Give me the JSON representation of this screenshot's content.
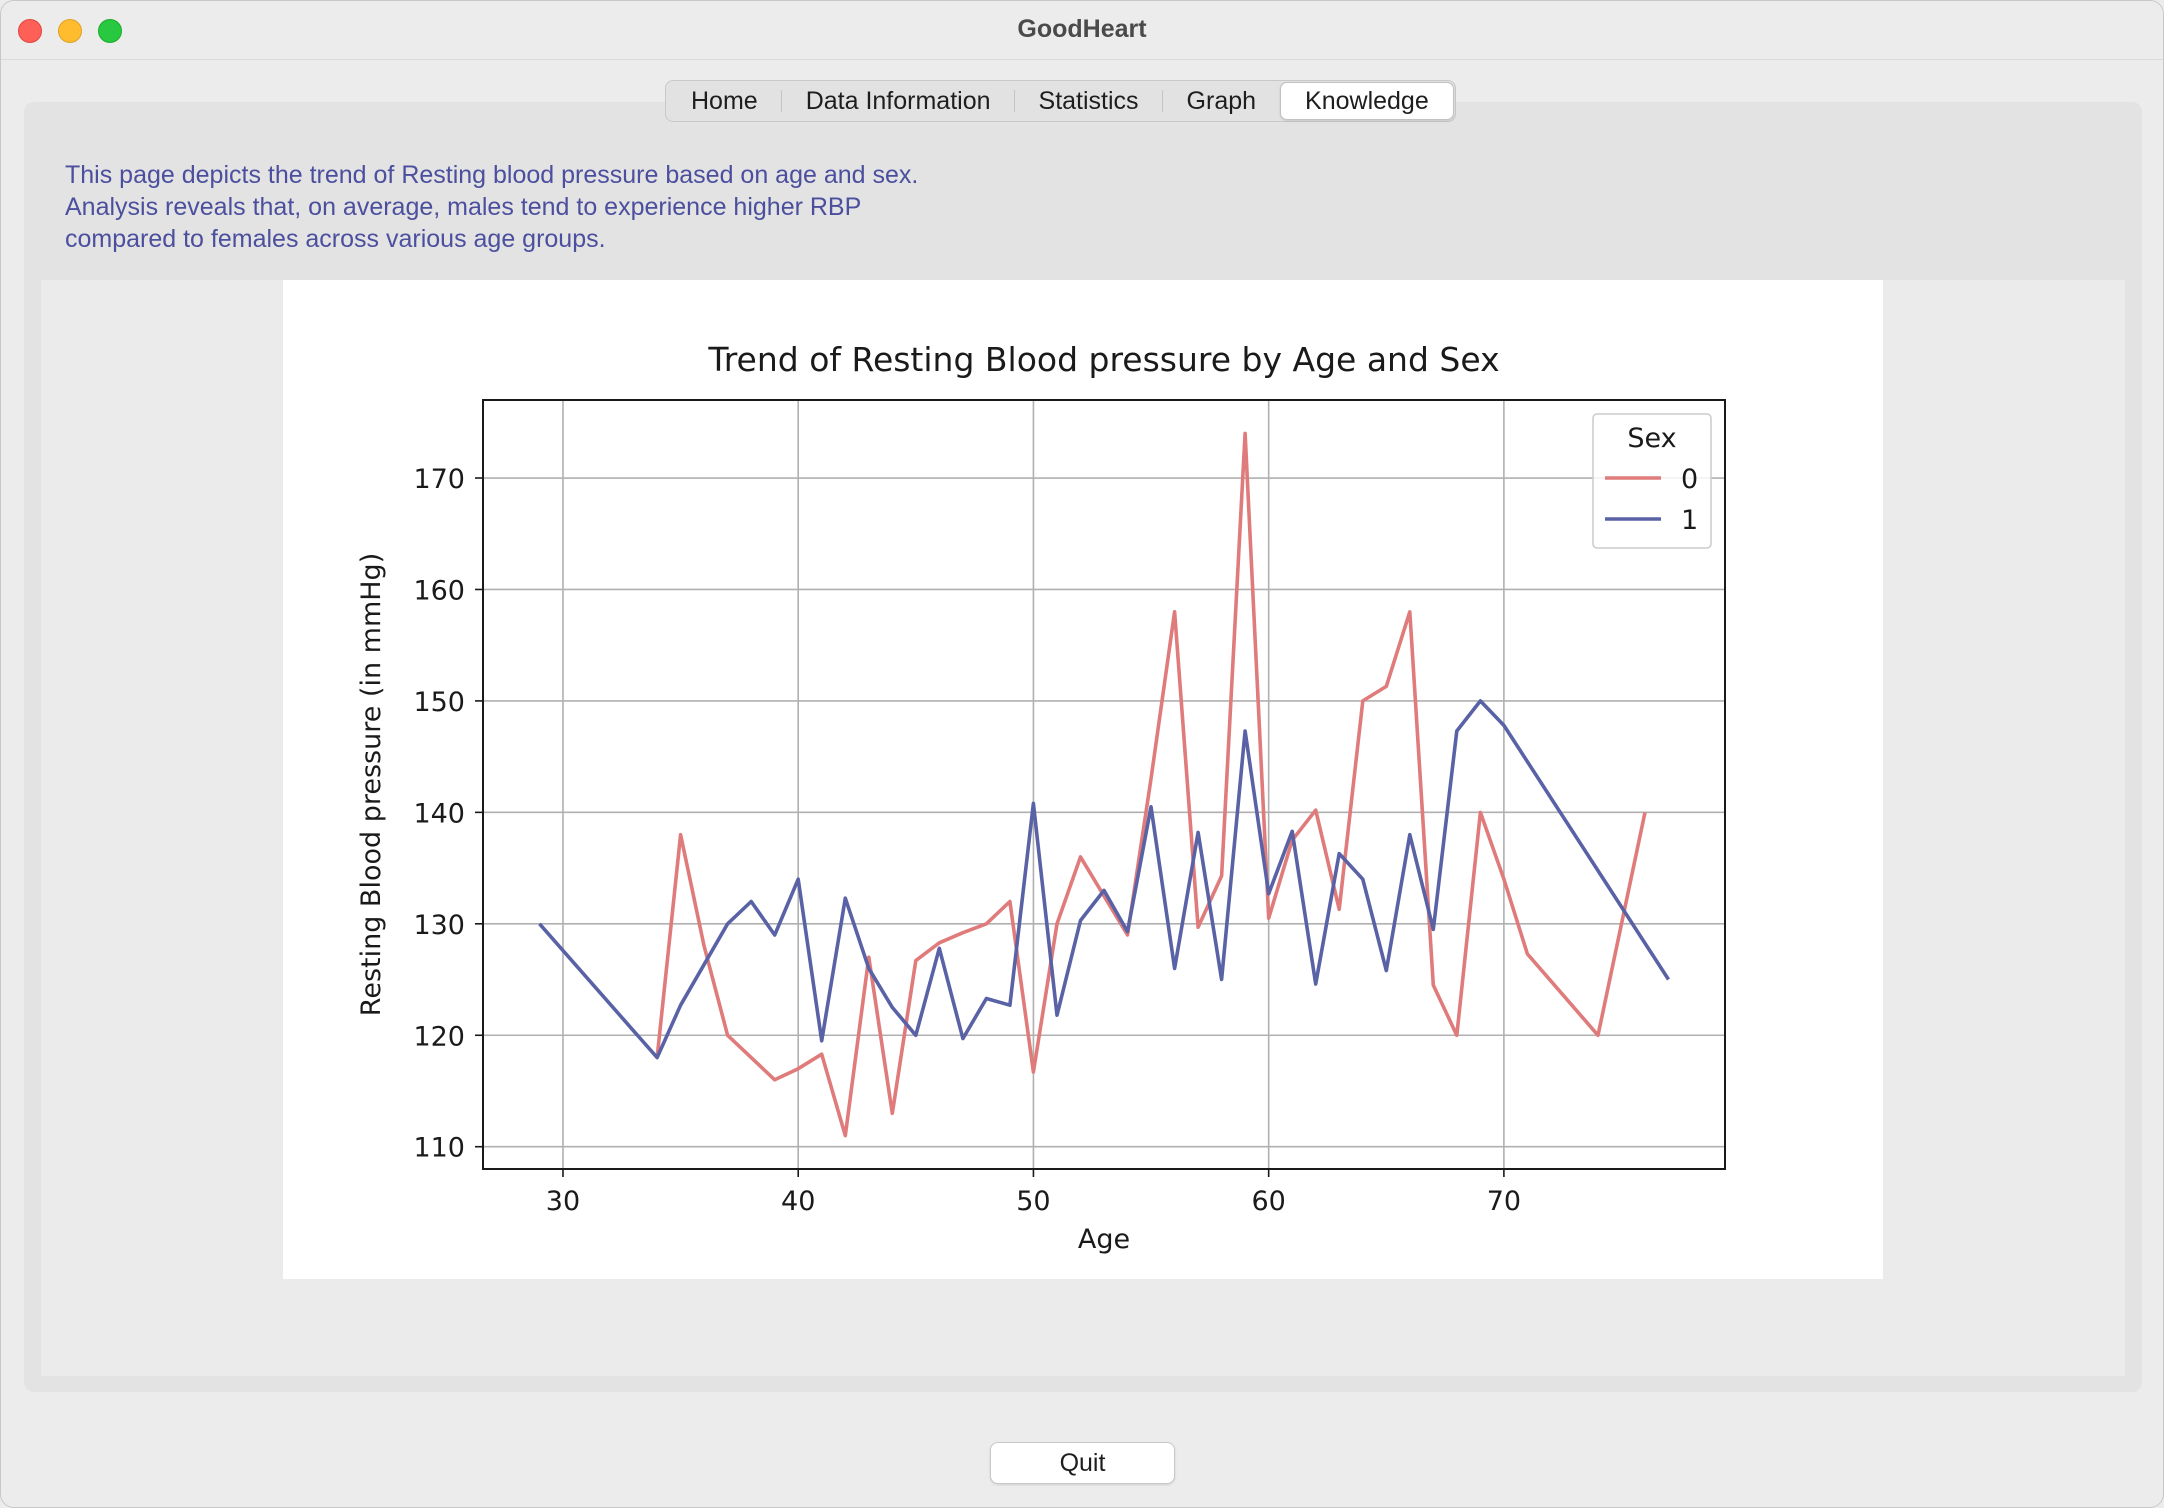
{
  "window": {
    "title": "GoodHeart"
  },
  "tabs": [
    {
      "label": "Home",
      "active": false
    },
    {
      "label": "Data Information",
      "active": false
    },
    {
      "label": "Statistics",
      "active": false
    },
    {
      "label": "Graph",
      "active": false
    },
    {
      "label": "Knowledge",
      "active": true
    }
  ],
  "description": {
    "lines": [
      "This page depicts the trend of Resting blood pressure based on age and sex.",
      "Analysis reveals that, on average, males tend to experience higher RBP",
      "compared to females across various age groups."
    ]
  },
  "footer": {
    "quit_label": "Quit"
  },
  "chart_data": {
    "type": "line",
    "title": "Trend of Resting Blood pressure by Age and Sex",
    "xlabel": "Age",
    "ylabel": "Resting Blood pressure (in mmHg)",
    "xlim": [
      26.6,
      79.4
    ],
    "ylim": [
      108,
      177
    ],
    "xticks": [
      30,
      40,
      50,
      60,
      70
    ],
    "yticks": [
      110,
      120,
      130,
      140,
      150,
      160,
      170
    ],
    "grid": true,
    "legend": {
      "title": "Sex",
      "placement": "upper right"
    },
    "series": [
      {
        "name": "0",
        "color": "#e07b7b",
        "points": [
          [
            34,
            118
          ],
          [
            35,
            138
          ],
          [
            36,
            128
          ],
          [
            37,
            120
          ],
          [
            38,
            118
          ],
          [
            39,
            116
          ],
          [
            40,
            117
          ],
          [
            41,
            118.3
          ],
          [
            42,
            111
          ],
          [
            43,
            127
          ],
          [
            44,
            113
          ],
          [
            45,
            126.7
          ],
          [
            46,
            128.3
          ],
          [
            47,
            129.2
          ],
          [
            48,
            130
          ],
          [
            49,
            132
          ],
          [
            50,
            116.7
          ],
          [
            51,
            130
          ],
          [
            52,
            136
          ],
          [
            53,
            132.5
          ],
          [
            54,
            129
          ],
          [
            55,
            143
          ],
          [
            56,
            158
          ],
          [
            57,
            129.7
          ],
          [
            58,
            134.3
          ],
          [
            59,
            174
          ],
          [
            60,
            130.5
          ],
          [
            61,
            137.5
          ],
          [
            62,
            140.2
          ],
          [
            63,
            131.3
          ],
          [
            64,
            150
          ],
          [
            65,
            151.3
          ],
          [
            66,
            158
          ],
          [
            67,
            124.5
          ],
          [
            68,
            120
          ],
          [
            69,
            140
          ],
          [
            70,
            134
          ],
          [
            71,
            127.3
          ],
          [
            74,
            120
          ],
          [
            76,
            140
          ]
        ]
      },
      {
        "name": "1",
        "color": "#5a62a6",
        "points": [
          [
            29,
            130
          ],
          [
            34,
            118
          ],
          [
            35,
            122.7
          ],
          [
            37,
            130
          ],
          [
            38,
            132
          ],
          [
            39,
            129
          ],
          [
            40,
            134
          ],
          [
            41,
            119.5
          ],
          [
            42,
            132.3
          ],
          [
            43,
            126
          ],
          [
            44,
            122.5
          ],
          [
            45,
            120
          ],
          [
            46,
            127.8
          ],
          [
            47,
            119.7
          ],
          [
            48,
            123.3
          ],
          [
            49,
            122.7
          ],
          [
            50,
            140.8
          ],
          [
            51,
            121.8
          ],
          [
            52,
            130.3
          ],
          [
            53,
            133
          ],
          [
            54,
            129.3
          ],
          [
            55,
            140.5
          ],
          [
            56,
            126
          ],
          [
            57,
            138.2
          ],
          [
            58,
            125
          ],
          [
            59,
            147.3
          ],
          [
            60,
            132.7
          ],
          [
            61,
            138.3
          ],
          [
            62,
            124.6
          ],
          [
            63,
            136.3
          ],
          [
            64,
            134
          ],
          [
            65,
            125.8
          ],
          [
            66,
            138
          ],
          [
            67,
            129.5
          ],
          [
            68,
            147.3
          ],
          [
            69,
            150
          ],
          [
            70,
            147.8
          ],
          [
            77,
            125
          ]
        ]
      }
    ]
  }
}
